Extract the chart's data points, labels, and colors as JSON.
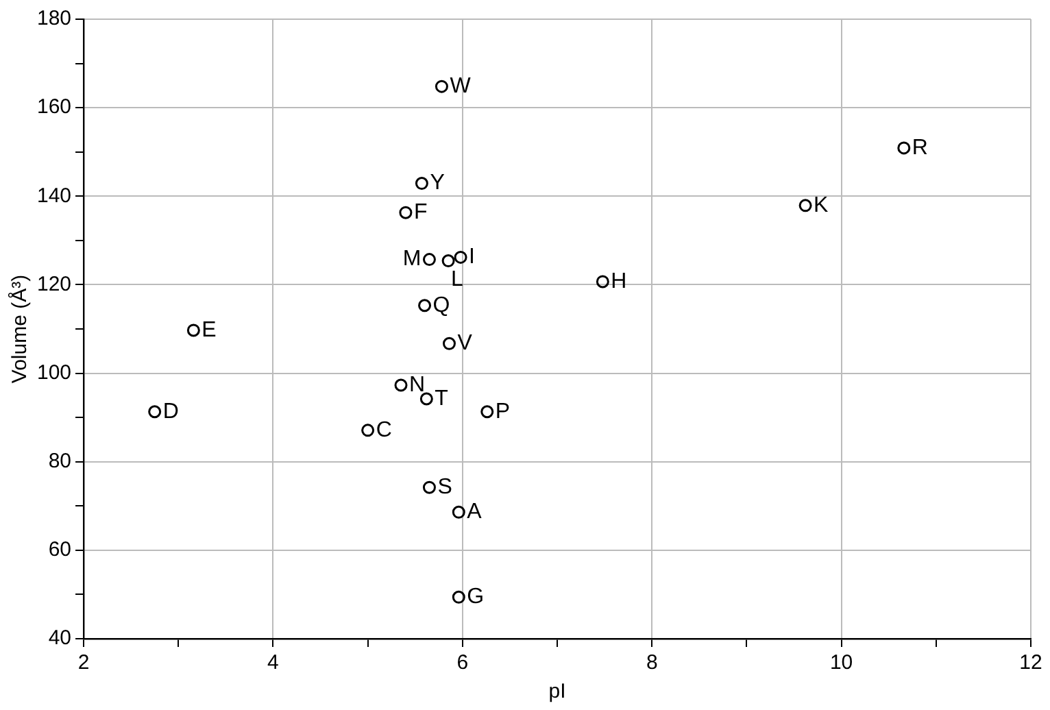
{
  "chart_data": {
    "type": "scatter",
    "xlabel": "pI",
    "ylabel": "Volume (Å³)",
    "marker": "circle",
    "grid": true,
    "xlim": [
      2,
      12
    ],
    "xticks": [
      2,
      {
        "value": 3,
        "label": null
      },
      4,
      {
        "value": 5,
        "label": null
      },
      6,
      {
        "value": 7,
        "label": null
      },
      8,
      {
        "value": 9,
        "label": null
      },
      10,
      {
        "value": 11,
        "label": null
      },
      12
    ],
    "ylim": [
      40,
      180
    ],
    "yticks": [
      40,
      {
        "value": 50,
        "label": null
      },
      60,
      {
        "value": 70,
        "label": null
      },
      80,
      {
        "value": 90,
        "label": null
      },
      100,
      {
        "value": 110,
        "label": null
      },
      120,
      {
        "value": 130,
        "label": null
      },
      140,
      {
        "value": 150,
        "label": null
      },
      160,
      {
        "value": 170,
        "label": null
      },
      180
    ],
    "series": [
      {
        "color": "#000000",
        "x": [
          5.78,
          5.57,
          5.4,
          5.65,
          5.85,
          5.98,
          5.6,
          5.86,
          2.75,
          3.16,
          5.35,
          5.62,
          6.26,
          5.0,
          5.65,
          5.96,
          5.96,
          10.66,
          9.62,
          7.48
        ],
        "values": [
          164.8,
          142.9,
          136.3,
          125.7,
          125.4,
          126.2,
          115.3,
          106.7,
          91.3,
          109.7,
          97.3,
          94.2,
          91.3,
          87.1,
          74.2,
          68.6,
          49.4,
          150.9,
          137.9,
          120.7
        ],
        "value_labels": [
          "W",
          "Y",
          "F",
          "M",
          "L",
          "I",
          "Q",
          "V",
          "D",
          "E",
          "N",
          "T",
          "P",
          "C",
          "S",
          "A",
          "G",
          "R",
          "K",
          "H"
        ]
      }
    ]
  }
}
